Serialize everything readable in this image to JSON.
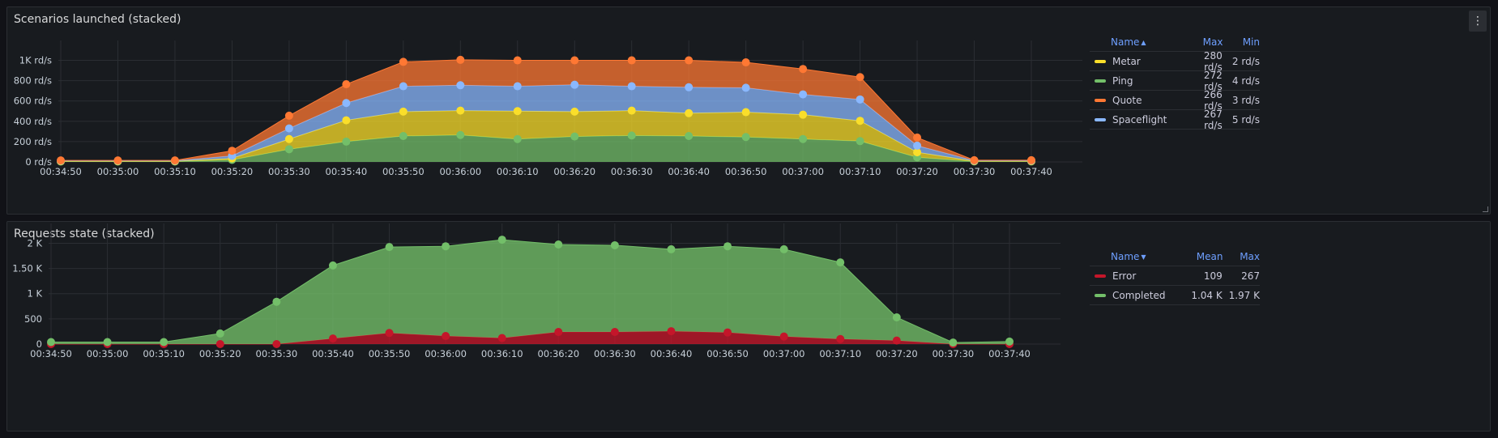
{
  "panels": [
    {
      "title": "Scenarios launched (stacked)",
      "legend": {
        "headers": {
          "name": "Name",
          "sort_icon": "chevron-up-icon",
          "c1": "Max",
          "c2": "Min"
        },
        "items": [
          {
            "name": "Metar",
            "c1": "280 rd/s",
            "c2": "2 rd/s",
            "color": "#fade2a"
          },
          {
            "name": "Ping",
            "c1": "272 rd/s",
            "c2": "4 rd/s",
            "color": "#73bf69"
          },
          {
            "name": "Quote",
            "c1": "266 rd/s",
            "c2": "3 rd/s",
            "color": "#ff7833"
          },
          {
            "name": "Spaceflight",
            "c1": "267 rd/s",
            "c2": "5 rd/s",
            "color": "#8ab8ff"
          }
        ]
      }
    },
    {
      "title": "Requests state (stacked)",
      "legend": {
        "headers": {
          "name": "Name",
          "sort_icon": "chevron-down-icon",
          "c1": "Mean",
          "c2": "Max"
        },
        "items": [
          {
            "name": "Error",
            "c1": "109",
            "c2": "267",
            "color": "#c4162a"
          },
          {
            "name": "Completed",
            "c1": "1.04 K",
            "c2": "1.97 K",
            "color": "#73bf69"
          }
        ]
      }
    }
  ],
  "chart_data": [
    {
      "type": "area",
      "stacked": true,
      "title": "Scenarios launched (stacked)",
      "x": [
        "00:34:50",
        "00:35:00",
        "00:35:10",
        "00:35:20",
        "00:35:30",
        "00:35:40",
        "00:35:50",
        "00:36:00",
        "00:36:10",
        "00:36:20",
        "00:36:30",
        "00:36:40",
        "00:36:50",
        "00:37:00",
        "00:37:10",
        "00:37:20",
        "00:37:30",
        "00:37:40"
      ],
      "x_ticks": [
        "00:34:50",
        "00:35:00",
        "00:35:10",
        "00:35:20",
        "00:35:30",
        "00:35:40",
        "00:35:50",
        "00:36:00",
        "00:36:10",
        "00:36:20",
        "00:36:30",
        "00:36:40",
        "00:36:50",
        "00:37:00",
        "00:37:10",
        "00:37:20",
        "00:37:30",
        "00:37:40"
      ],
      "y_ticks": [
        "0 rd/s",
        "200 rd/s",
        "400 rd/s",
        "600 rd/s",
        "800 rd/s",
        "1K rd/s"
      ],
      "ylim": [
        0,
        1100
      ],
      "grid": true,
      "legend_position": "right",
      "series": [
        {
          "name": "Ping",
          "color": "#73bf69",
          "values": [
            4,
            4,
            4,
            20,
            125,
            200,
            255,
            265,
            225,
            250,
            260,
            255,
            245,
            225,
            205,
            45,
            5,
            5
          ]
        },
        {
          "name": "Metar",
          "color": "#fade2a",
          "values": [
            3,
            3,
            3,
            15,
            100,
            210,
            240,
            240,
            275,
            245,
            245,
            225,
            245,
            240,
            200,
            50,
            3,
            3
          ]
        },
        {
          "name": "Spaceflight",
          "color": "#8ab8ff",
          "values": [
            5,
            5,
            5,
            25,
            105,
            170,
            250,
            250,
            245,
            265,
            240,
            255,
            240,
            200,
            210,
            65,
            5,
            5
          ]
        },
        {
          "name": "Quote",
          "color": "#ff7833",
          "values": [
            3,
            3,
            3,
            50,
            125,
            185,
            240,
            250,
            255,
            240,
            255,
            265,
            250,
            250,
            220,
            80,
            4,
            4
          ]
        }
      ]
    },
    {
      "type": "area",
      "stacked": true,
      "title": "Requests state (stacked)",
      "x": [
        "00:34:50",
        "00:35:00",
        "00:35:10",
        "00:35:20",
        "00:35:30",
        "00:35:40",
        "00:35:50",
        "00:36:00",
        "00:36:10",
        "00:36:20",
        "00:36:30",
        "00:36:40",
        "00:36:50",
        "00:37:00",
        "00:37:10",
        "00:37:20",
        "00:37:30",
        "00:37:40"
      ],
      "x_ticks": [
        "00:34:50",
        "00:35:00",
        "00:35:10",
        "00:35:20",
        "00:35:30",
        "00:35:40",
        "00:35:50",
        "00:36:00",
        "00:36:10",
        "00:36:20",
        "00:36:30",
        "00:36:40",
        "00:36:50",
        "00:37:00",
        "00:37:10",
        "00:37:20",
        "00:37:30",
        "00:37:40"
      ],
      "y_ticks": [
        "0",
        "500",
        "1 K",
        "1.50 K",
        "2 K"
      ],
      "ylim": [
        0,
        2200
      ],
      "grid": true,
      "legend_position": "right",
      "series": [
        {
          "name": "Error",
          "color": "#c4162a",
          "values": [
            0,
            0,
            0,
            0,
            0,
            110,
            220,
            160,
            120,
            240,
            240,
            255,
            230,
            150,
            100,
            70,
            0,
            0
          ]
        },
        {
          "name": "Completed",
          "color": "#73bf69",
          "values": [
            40,
            40,
            40,
            210,
            840,
            1450,
            1705,
            1780,
            1950,
            1735,
            1720,
            1625,
            1710,
            1730,
            1520,
            460,
            30,
            50
          ]
        }
      ]
    }
  ]
}
